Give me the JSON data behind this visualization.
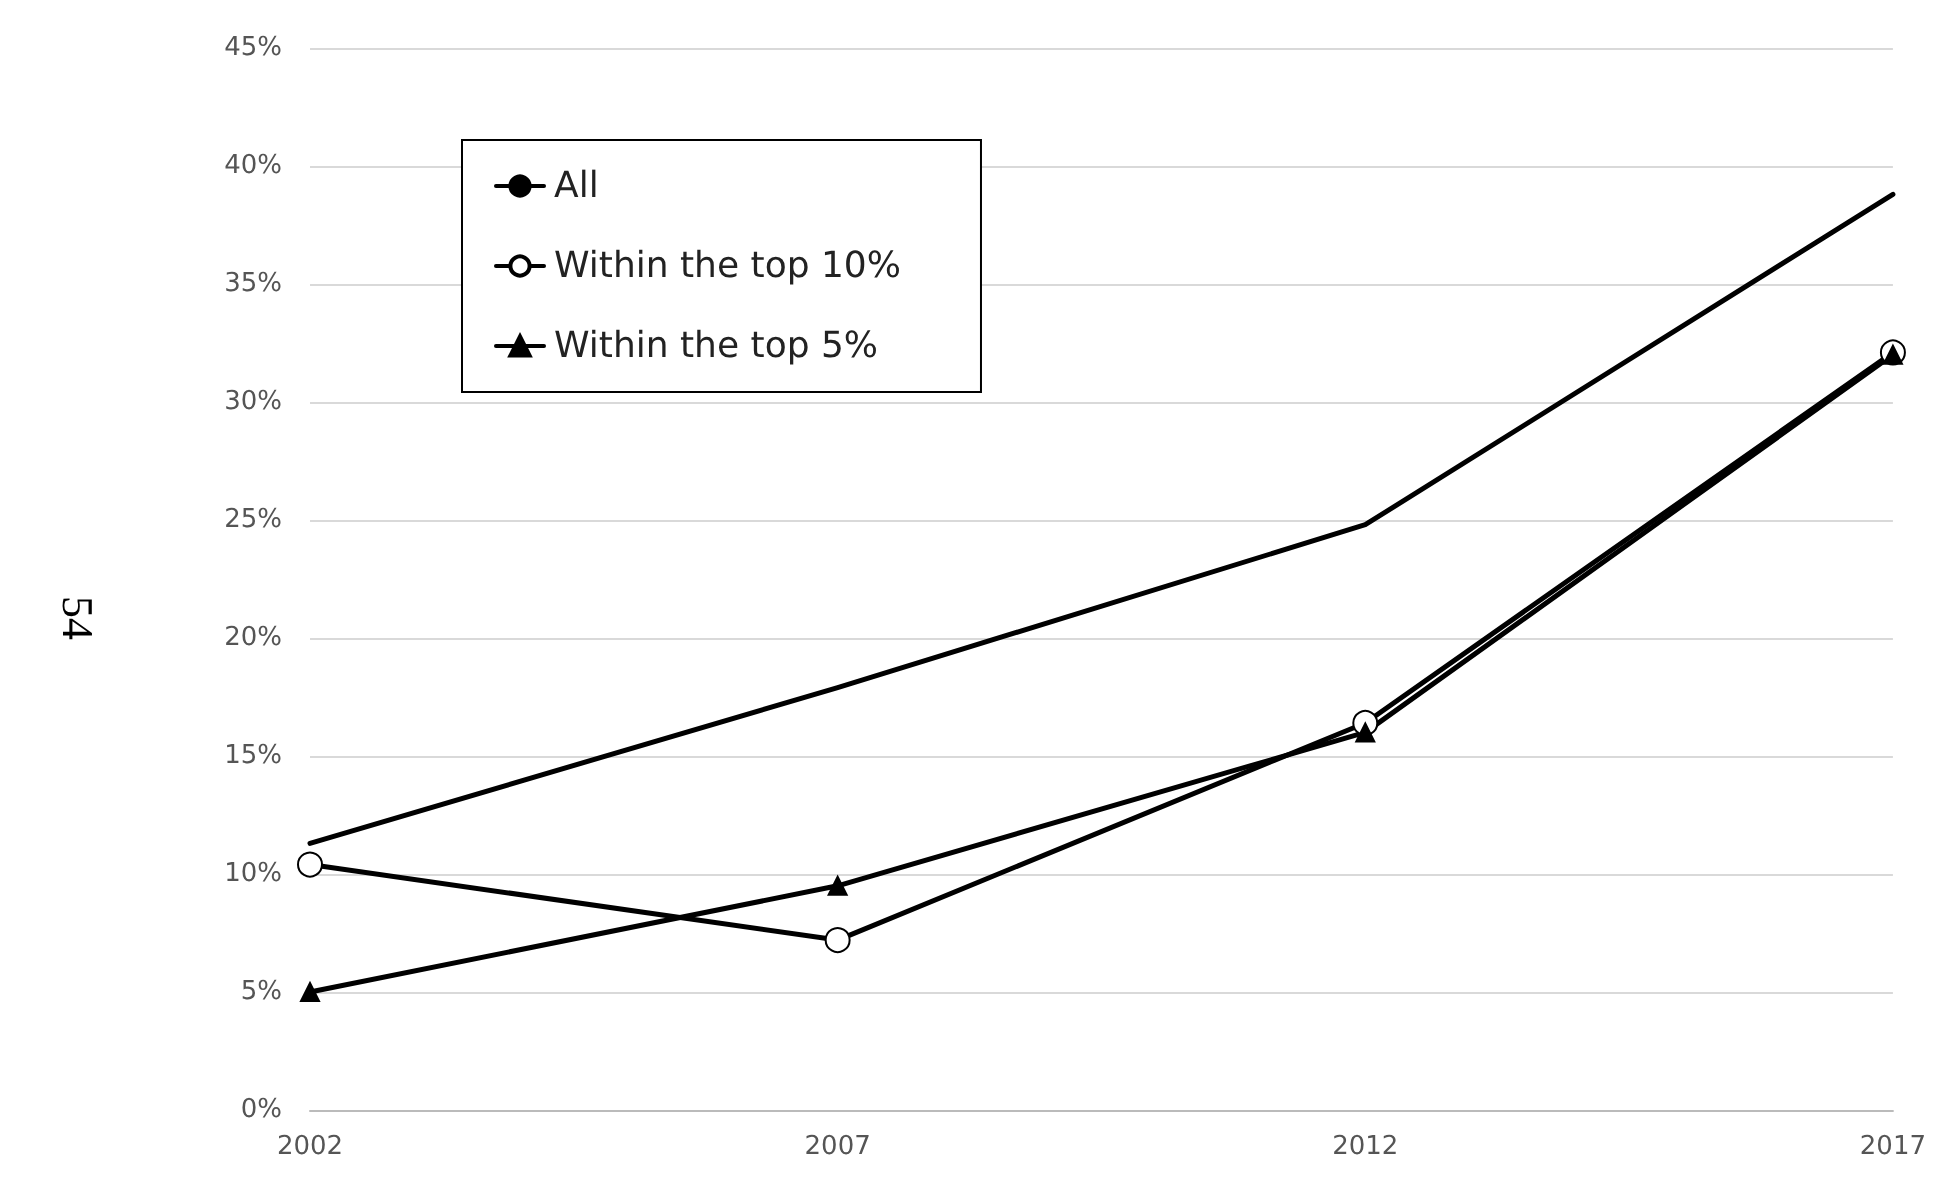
{
  "chart_data": {
    "type": "line",
    "categories": [
      "2002",
      "2007",
      "2012",
      "2017"
    ],
    "series": [
      {
        "name": "All",
        "color": "#000000",
        "marker": "none",
        "values": [
          11.3,
          17.9,
          24.8,
          38.8
        ]
      },
      {
        "name": "Within the top 10%",
        "color": "#000000",
        "marker": "circle",
        "values": [
          10.4,
          7.2,
          16.4,
          32.1
        ]
      },
      {
        "name": "Within the top 5%",
        "color": "#000000",
        "marker": "triangle",
        "values": [
          5.0,
          9.5,
          16.0,
          32.0
        ]
      }
    ],
    "ylim": [
      0,
      45
    ],
    "yticks": [
      {
        "value": 0,
        "label": "0%"
      },
      {
        "value": 5,
        "label": "5%"
      },
      {
        "value": 10,
        "label": "10%"
      },
      {
        "value": 15,
        "label": "15%"
      },
      {
        "value": 20,
        "label": "20%"
      },
      {
        "value": 25,
        "label": "25%"
      },
      {
        "value": 30,
        "label": "30%"
      },
      {
        "value": 35,
        "label": "35%"
      },
      {
        "value": 40,
        "label": "40%"
      },
      {
        "value": 45,
        "label": "45%"
      }
    ],
    "grid": "y",
    "legend": "top left",
    "line_style": "solid",
    "annotations": [
      "54"
    ]
  }
}
